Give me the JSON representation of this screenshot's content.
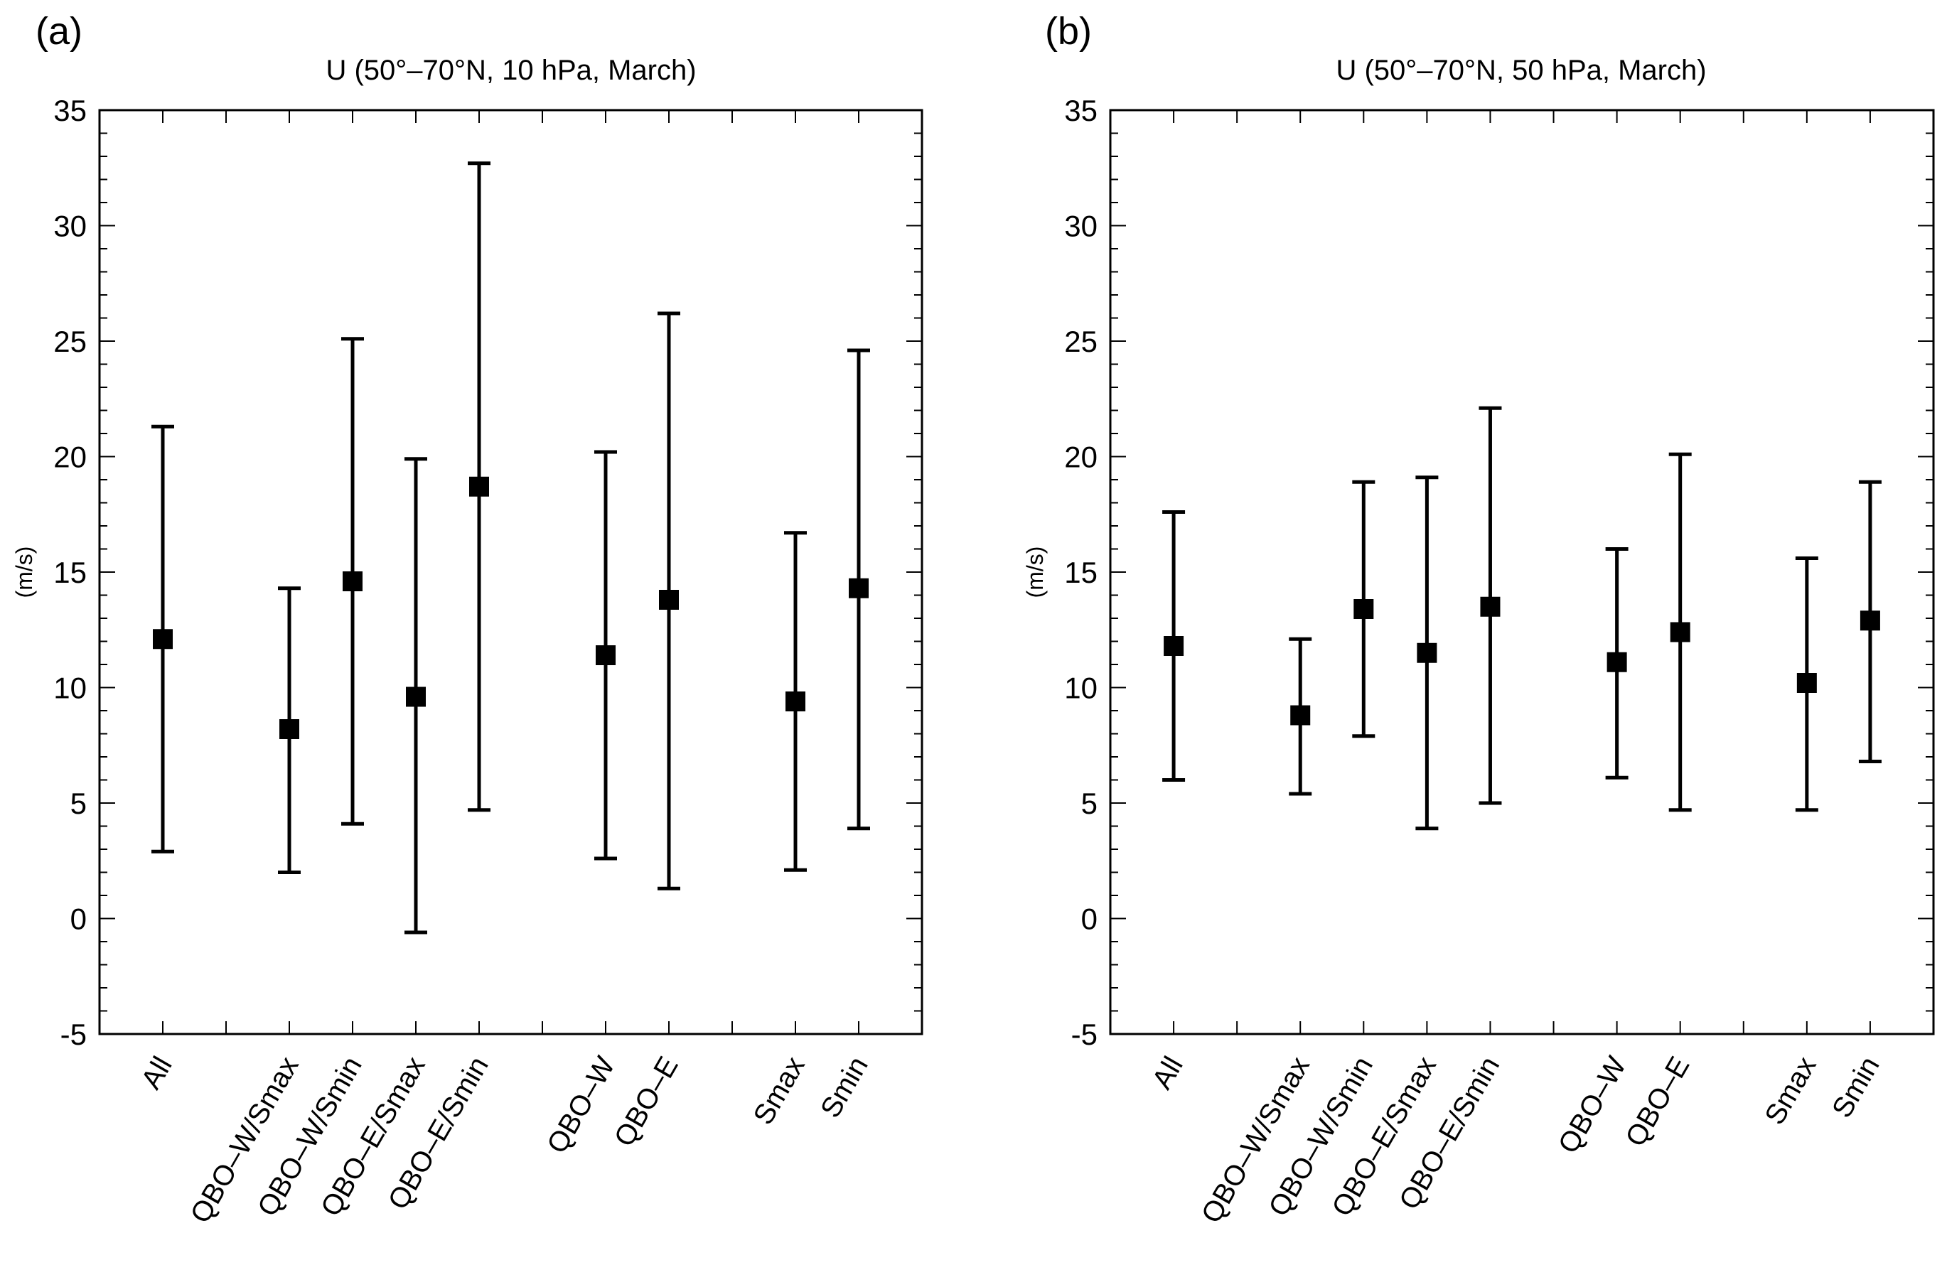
{
  "chart_data": [
    {
      "type": "errorbar",
      "panel_label": "(a)",
      "title": "U (50°–70°N, 10 hPa, March)",
      "xlabel": "",
      "ylabel": "(m/s)",
      "ylim": [
        -5,
        35
      ],
      "yticks": [
        -5,
        0,
        5,
        10,
        15,
        20,
        25,
        30,
        35
      ],
      "grid": false,
      "points": [
        {
          "label": "All",
          "pos": 1,
          "value": 12.1,
          "low": 2.9,
          "high": 21.3
        },
        {
          "label": "QBO–W/Smax",
          "pos": 3,
          "value": 8.2,
          "low": 2.0,
          "high": 14.3
        },
        {
          "label": "QBO–W/Smin",
          "pos": 4,
          "value": 14.6,
          "low": 4.1,
          "high": 25.1
        },
        {
          "label": "QBO–E/Smax",
          "pos": 5,
          "value": 9.6,
          "low": -0.6,
          "high": 19.9
        },
        {
          "label": "QBO–E/Smin",
          "pos": 6,
          "value": 18.7,
          "low": 4.7,
          "high": 32.7
        },
        {
          "label": "QBO–W",
          "pos": 8,
          "value": 11.4,
          "low": 2.6,
          "high": 20.2
        },
        {
          "label": "QBO–E",
          "pos": 9,
          "value": 13.8,
          "low": 1.3,
          "high": 26.2
        },
        {
          "label": "Smax",
          "pos": 11,
          "value": 9.4,
          "low": 2.1,
          "high": 16.7
        },
        {
          "label": "Smin",
          "pos": 12,
          "value": 14.3,
          "low": 3.9,
          "high": 24.6
        }
      ]
    },
    {
      "type": "errorbar",
      "panel_label": "(b)",
      "title": "U (50°–70°N, 50 hPa, March)",
      "xlabel": "",
      "ylabel": "(m/s)",
      "ylim": [
        -5,
        35
      ],
      "yticks": [
        -5,
        0,
        5,
        10,
        15,
        20,
        25,
        30,
        35
      ],
      "grid": false,
      "points": [
        {
          "label": "All",
          "pos": 1,
          "value": 11.8,
          "low": 6.0,
          "high": 17.6
        },
        {
          "label": "QBO–W/Smax",
          "pos": 3,
          "value": 8.8,
          "low": 5.4,
          "high": 12.1
        },
        {
          "label": "QBO–W/Smin",
          "pos": 4,
          "value": 13.4,
          "low": 7.9,
          "high": 18.9
        },
        {
          "label": "QBO–E/Smax",
          "pos": 5,
          "value": 11.5,
          "low": 3.9,
          "high": 19.1
        },
        {
          "label": "QBO–E/Smin",
          "pos": 6,
          "value": 13.5,
          "low": 5.0,
          "high": 22.1
        },
        {
          "label": "QBO–W",
          "pos": 8,
          "value": 11.1,
          "low": 6.1,
          "high": 16.0
        },
        {
          "label": "QBO–E",
          "pos": 9,
          "value": 12.4,
          "low": 4.7,
          "high": 20.1
        },
        {
          "label": "Smax",
          "pos": 11,
          "value": 10.2,
          "low": 4.7,
          "high": 15.6
        },
        {
          "label": "Smin",
          "pos": 12,
          "value": 12.9,
          "low": 6.8,
          "high": 18.9
        }
      ]
    }
  ]
}
